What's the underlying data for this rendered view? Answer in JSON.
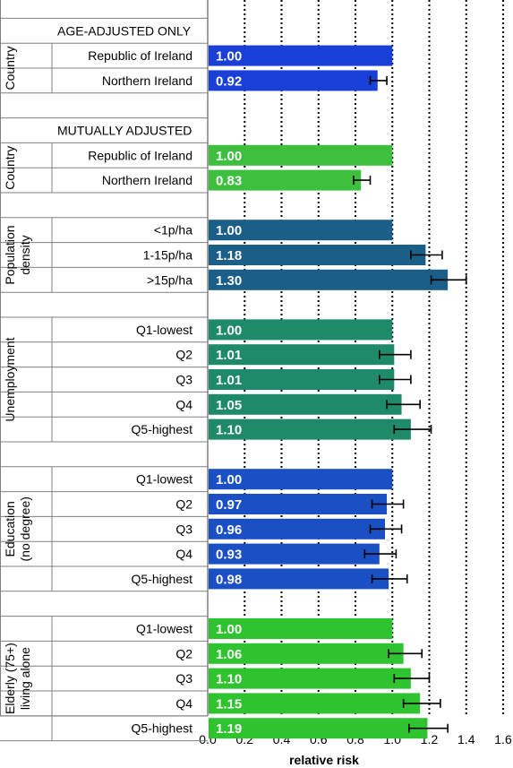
{
  "chart_data": {
    "type": "bar",
    "orientation": "horizontal",
    "xlabel": "relative risk",
    "xlim": [
      0,
      1.6
    ],
    "xticks": [
      "0.0",
      "0.2",
      "0.4",
      "0.6",
      "0.8",
      "1.0",
      "1.2",
      "1.4",
      "1.6"
    ],
    "grid": "vertical dotted",
    "colors": {
      "age_adjusted_country": "#1a3fd6",
      "mutual_country": "#3fbf3f",
      "population_density": "#1b5e87",
      "unemployment": "#1f8a6a",
      "education": "#1b4fc4",
      "elderly": "#2fc42f"
    },
    "sections": [
      {
        "header": "AGE-ADJUSTED ONLY",
        "groups": [
          {
            "label": "Country",
            "color_key": "age_adjusted_country",
            "rows": [
              {
                "category": "Republic of Ireland",
                "value": 1.0,
                "label": "1.00"
              },
              {
                "category": "Northern Ireland",
                "value": 0.92,
                "label": "0.92",
                "ci": [
                  0.88,
                  0.97
                ]
              }
            ]
          }
        ]
      },
      {
        "header": "MUTUALLY ADJUSTED",
        "groups": [
          {
            "label": "Country",
            "color_key": "mutual_country",
            "rows": [
              {
                "category": "Republic of Ireland",
                "value": 1.0,
                "label": "1.00"
              },
              {
                "category": "Northern Ireland",
                "value": 0.83,
                "label": "0.83",
                "ci": [
                  0.79,
                  0.88
                ]
              }
            ]
          },
          {
            "label": "Population density",
            "label_lines": [
              "Population",
              "density"
            ],
            "color_key": "population_density",
            "rows": [
              {
                "category": "<1p/ha",
                "value": 1.0,
                "label": "1.00"
              },
              {
                "category": "1-15p/ha",
                "value": 1.18,
                "label": "1.18",
                "ci": [
                  1.1,
                  1.27
                ]
              },
              {
                "category": ">15p/ha",
                "value": 1.3,
                "label": "1.30",
                "ci": [
                  1.21,
                  1.4
                ]
              }
            ]
          },
          {
            "label": "Unemployment",
            "label_lines": [
              "Unemployment"
            ],
            "color_key": "unemployment",
            "rows": [
              {
                "category": "Q1-lowest",
                "value": 1.0,
                "label": "1.00"
              },
              {
                "category": "Q2",
                "value": 1.01,
                "label": "1.01",
                "ci": [
                  0.93,
                  1.1
                ]
              },
              {
                "category": "Q3",
                "value": 1.01,
                "label": "1.01",
                "ci": [
                  0.93,
                  1.1
                ]
              },
              {
                "category": "Q4",
                "value": 1.05,
                "label": "1.05",
                "ci": [
                  0.97,
                  1.15
                ]
              },
              {
                "category": "Q5-highest",
                "value": 1.1,
                "label": "1.10",
                "ci": [
                  1.01,
                  1.21
                ]
              }
            ]
          },
          {
            "label": "Education (no degree)",
            "label_lines": [
              "Education",
              "(no degree)"
            ],
            "color_key": "education",
            "rows": [
              {
                "category": "Q1-lowest",
                "value": 1.0,
                "label": "1.00"
              },
              {
                "category": "Q2",
                "value": 0.97,
                "label": "0.97",
                "ci": [
                  0.89,
                  1.06
                ]
              },
              {
                "category": "Q3",
                "value": 0.96,
                "label": "0.96",
                "ci": [
                  0.88,
                  1.05
                ]
              },
              {
                "category": "Q4",
                "value": 0.93,
                "label": "0.93",
                "ci": [
                  0.85,
                  1.02
                ]
              },
              {
                "category": "Q5-highest",
                "value": 0.98,
                "label": "0.98",
                "ci": [
                  0.89,
                  1.08
                ]
              }
            ]
          },
          {
            "label": "Elderly (75+) living alone",
            "label_lines": [
              "Elderly (75+)",
              "living alone"
            ],
            "color_key": "elderly",
            "rows": [
              {
                "category": "Q1-lowest",
                "value": 1.0,
                "label": "1.00"
              },
              {
                "category": "Q2",
                "value": 1.06,
                "label": "1.06",
                "ci": [
                  0.98,
                  1.16
                ]
              },
              {
                "category": "Q3",
                "value": 1.1,
                "label": "1.10",
                "ci": [
                  1.01,
                  1.2
                ]
              },
              {
                "category": "Q4",
                "value": 1.15,
                "label": "1.15",
                "ci": [
                  1.06,
                  1.26
                ]
              },
              {
                "category": "Q5-highest",
                "value": 1.19,
                "label": "1.19",
                "ci": [
                  1.09,
                  1.3
                ]
              }
            ]
          }
        ]
      }
    ]
  }
}
